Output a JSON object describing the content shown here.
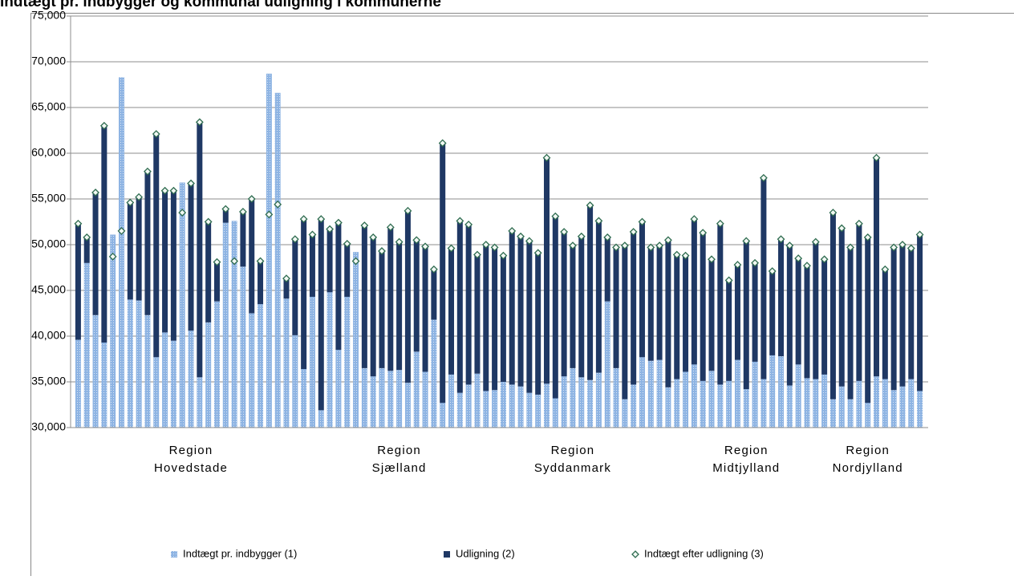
{
  "chart_data": {
    "type": "bar",
    "title": "Indtægt pr. indbygger og kommunal udligning i kommunerne",
    "categories": [
      null,
      null,
      null,
      null,
      null,
      null,
      null,
      null,
      null,
      null,
      null,
      null,
      null,
      "Region Hovedstade",
      null,
      null,
      null,
      null,
      null,
      null,
      null,
      null,
      null,
      null,
      null,
      null,
      null,
      null,
      null,
      null,
      null,
      null,
      null,
      null,
      null,
      null,
      null,
      "Region Sjælland",
      null,
      null,
      null,
      null,
      null,
      null,
      null,
      null,
      null,
      null,
      null,
      null,
      null,
      null,
      null,
      null,
      null,
      null,
      null,
      "Region Syddanmark",
      null,
      null,
      null,
      null,
      null,
      null,
      null,
      null,
      null,
      null,
      null,
      null,
      null,
      null,
      null,
      null,
      null,
      null,
      null,
      "Region Midtjylland",
      null,
      null,
      null,
      null,
      null,
      null,
      null,
      null,
      null,
      null,
      null,
      null,
      null,
      "Region Nordjylland",
      null,
      null,
      null,
      null,
      null,
      null
    ],
    "series": [
      {
        "name": "Indtægt pr. indbygger (1)",
        "color": "#8eb4e3",
        "values": [
          39600,
          48000,
          42300,
          39300,
          51100,
          68300,
          44000,
          43900,
          42300,
          37700,
          40400,
          39500,
          56800,
          40600,
          35500,
          41500,
          43800,
          52400,
          52600,
          47600,
          42500,
          43500,
          68700,
          66600,
          44100,
          40100,
          36400,
          44300,
          31900,
          44800,
          38500,
          44300,
          49200,
          36500,
          35600,
          36500,
          36200,
          36300,
          34900,
          38300,
          36100,
          41800,
          32700,
          35800,
          33800,
          34700,
          35900,
          34000,
          34100,
          35000,
          34700,
          34500,
          33800,
          33600,
          34800,
          33200,
          35600,
          36500,
          35500,
          35200,
          36000,
          43800,
          36500,
          33100,
          34700,
          37700,
          37300,
          37400,
          34400,
          35300,
          36100,
          36900,
          35100,
          36200,
          34700,
          35100,
          37400,
          34200,
          37200,
          35300,
          37900,
          37800,
          34600,
          36900,
          35400,
          35300,
          35800,
          33100,
          34500,
          33100,
          35100,
          32700,
          35600,
          35300,
          34100,
          34500,
          35300,
          34000
        ]
      },
      {
        "name": "Udligning (2)",
        "color": "#1f3864",
        "values": [
          12700,
          2800,
          13400,
          23700,
          -2400,
          -16800,
          10600,
          11300,
          15700,
          24400,
          15500,
          16400,
          -3300,
          16100,
          27900,
          11000,
          4300,
          1500,
          -4400,
          6000,
          12500,
          4700,
          -15400,
          -12200,
          2200,
          10500,
          16400,
          6800,
          20900,
          6900,
          13900,
          5800,
          -1000,
          15600,
          15200,
          12800,
          15700,
          14000,
          18800,
          12200,
          13700,
          5500,
          28400,
          13800,
          18800,
          17500,
          13000,
          16000,
          15600,
          13800,
          16800,
          16400,
          16600,
          15500,
          24700,
          19900,
          15800,
          13400,
          15400,
          19100,
          16600,
          7000,
          13200,
          16800,
          16700,
          14800,
          12400,
          12500,
          16100,
          13600,
          12700,
          15900,
          16200,
          12200,
          17600,
          11000,
          10400,
          16200,
          10800,
          22000,
          9200,
          12800,
          15300,
          11600,
          12300,
          15000,
          12600,
          20400,
          17300,
          16600,
          17200,
          18100,
          23900,
          12000,
          15600,
          15500,
          14300,
          17100
        ]
      },
      {
        "name": "Indtægt efter udligning (3)",
        "color": "#2e6b4f",
        "values": [
          52300,
          50800,
          55700,
          63000,
          48700,
          51500,
          54600,
          55200,
          58000,
          62100,
          55900,
          55900,
          53500,
          56700,
          63400,
          52500,
          48100,
          53900,
          48200,
          53600,
          55000,
          48200,
          53300,
          54400,
          46300,
          50600,
          52800,
          51100,
          52800,
          51700,
          52400,
          50100,
          48200,
          52100,
          50800,
          49300,
          51900,
          50300,
          53700,
          50500,
          49800,
          47300,
          61100,
          49600,
          52600,
          52200,
          48900,
          50000,
          49700,
          48800,
          51500,
          50900,
          50400,
          49100,
          59500,
          53100,
          51400,
          49900,
          50900,
          54300,
          52600,
          50800,
          49700,
          49900,
          51400,
          52500,
          49700,
          49900,
          50500,
          48900,
          48800,
          52800,
          51300,
          48400,
          52300,
          46100,
          47800,
          50400,
          48000,
          57300,
          47100,
          50600,
          49900,
          48500,
          47700,
          50300,
          48400,
          53500,
          51800,
          49700,
          52300,
          50800,
          59500,
          47300,
          49700,
          50000,
          49600,
          51100
        ]
      }
    ],
    "ylim": [
      30000,
      75000
    ],
    "yticks": [
      {
        "value": 30000,
        "label": "30,000"
      },
      {
        "value": 35000,
        "label": "35,000"
      },
      {
        "value": 40000,
        "label": "40,000"
      },
      {
        "value": 45000,
        "label": "45,000"
      },
      {
        "value": 50000,
        "label": "50,000"
      },
      {
        "value": 55000,
        "label": "55,000"
      },
      {
        "value": 60000,
        "label": "60,000"
      },
      {
        "value": 65000,
        "label": "65,000"
      },
      {
        "value": 70000,
        "label": "70,000"
      },
      {
        "value": 75000,
        "label": "75,000"
      }
    ],
    "grid": true
  }
}
